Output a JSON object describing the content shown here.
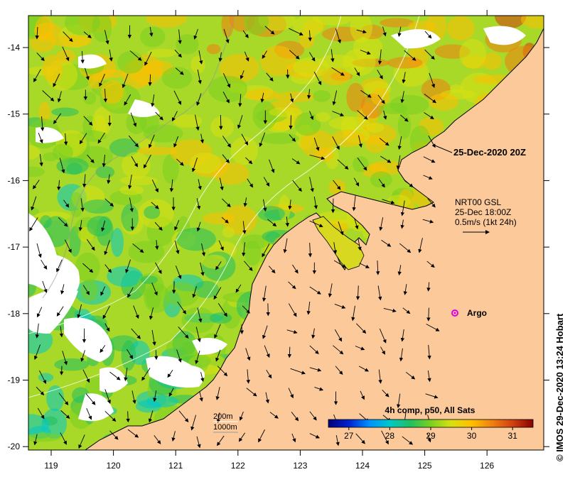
{
  "map": {
    "date_label": "25-Dec-2020 20Z",
    "current_model": {
      "line1": "NRT00 GSL",
      "line2": "25-Dec 18:00Z",
      "line3": "0.5m/s (1kt 24h)"
    },
    "argo_label": "Argo",
    "depth_legend": [
      "200m",
      "1000m"
    ],
    "colorbar": {
      "title": "4h comp, p50, All Sats",
      "ticks": [
        "27",
        "28",
        "29",
        "30",
        "31"
      ],
      "range": [
        26.5,
        31.5
      ],
      "colors": [
        "#00007a",
        "#0022d0",
        "#0090ff",
        "#00c8c8",
        "#20c060",
        "#7ad020",
        "#d8e010",
        "#ffc000",
        "#f08010",
        "#d04010",
        "#8a0000"
      ]
    },
    "x_axis_ticks": [
      "119",
      "120",
      "121",
      "122",
      "123",
      "124",
      "125",
      "126"
    ],
    "y_axis_ticks": [
      "-14",
      "-15",
      "-16",
      "-17",
      "-18",
      "-19",
      "-20"
    ],
    "credit": "© IMOS 29-Dec-2020 13:24 Hobart",
    "colors": {
      "land": "#fbc99a",
      "coast": "#000000",
      "argo_marker": "#e000e0",
      "contour": "#ffffff"
    }
  }
}
